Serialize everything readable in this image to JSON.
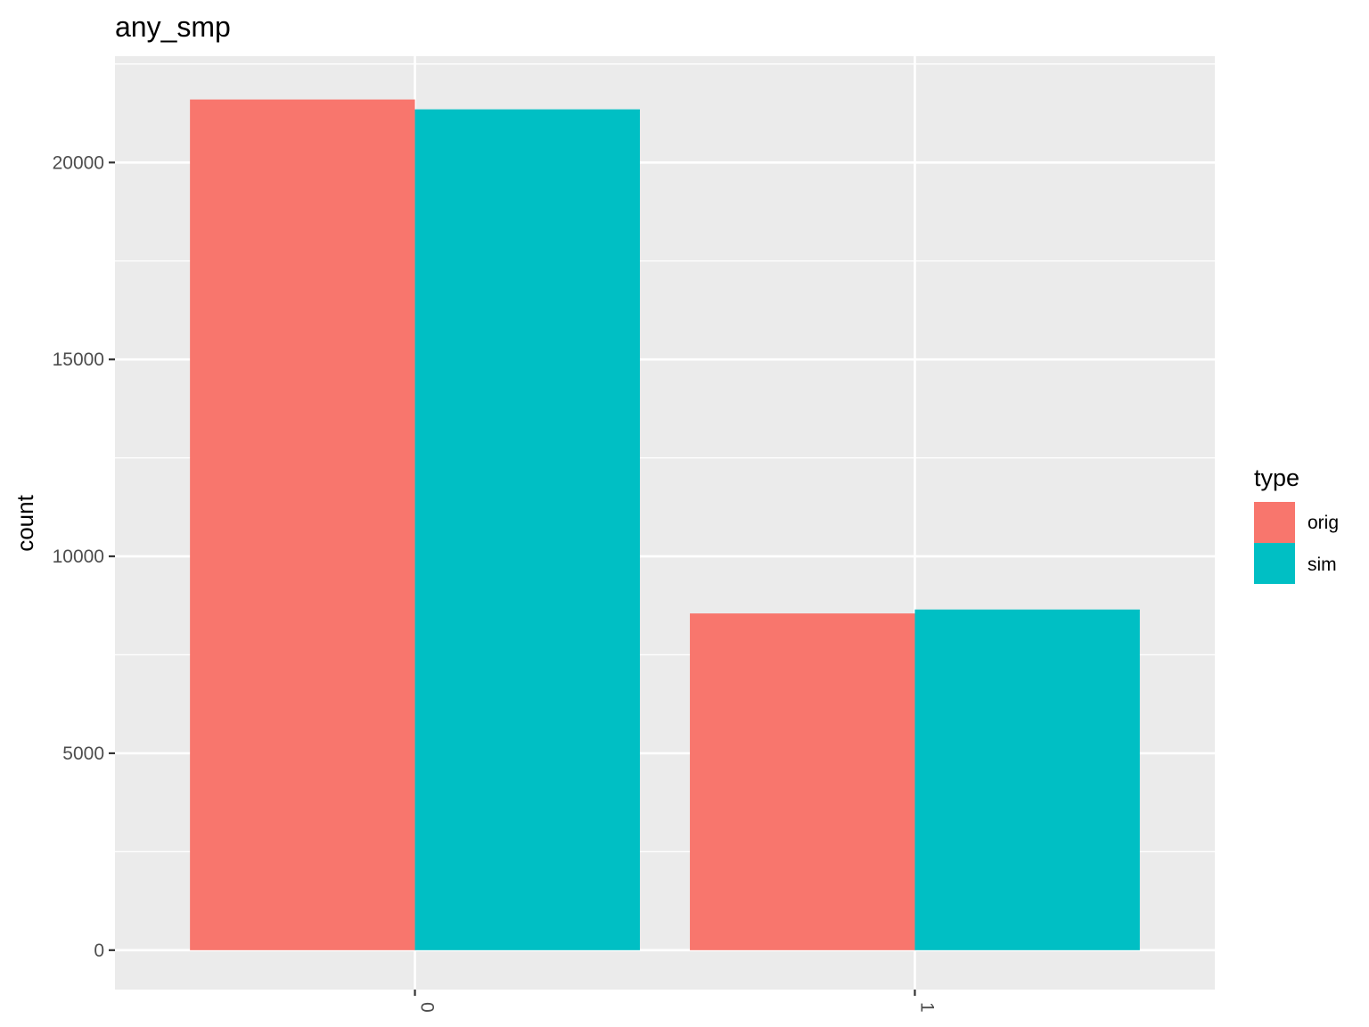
{
  "chart_data": {
    "type": "bar",
    "title": "any_smp",
    "xlabel": "",
    "ylabel": "count",
    "categories": [
      "0",
      "1"
    ],
    "series": [
      {
        "name": "orig",
        "color": "#F8766D",
        "values": [
          21600,
          8550
        ]
      },
      {
        "name": "sim",
        "color": "#00BFC4",
        "values": [
          21350,
          8650
        ]
      }
    ],
    "ylim": [
      -1000,
      22700
    ],
    "yticks": [
      0,
      5000,
      10000,
      15000,
      20000
    ],
    "ytick_labels": [
      "0",
      "5000",
      "10000",
      "15000",
      "20000"
    ],
    "grid": true,
    "panel_background": "#EBEBEB",
    "legend": {
      "title": "type",
      "entries": [
        "orig",
        "sim"
      ],
      "position": "right"
    }
  }
}
